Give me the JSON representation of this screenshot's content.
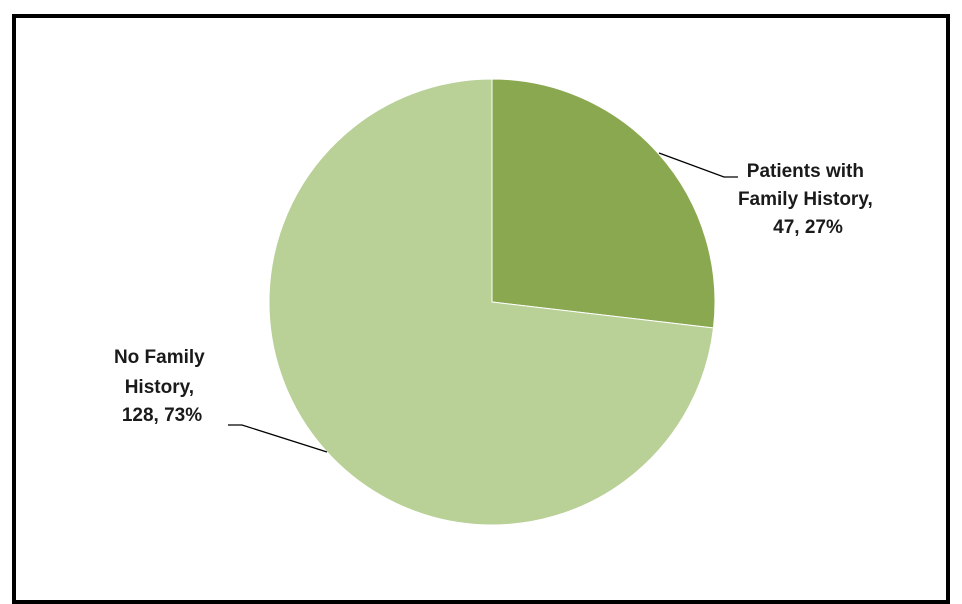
{
  "chart_data": {
    "type": "pie",
    "slices": [
      {
        "label_lines": [
          "Patients with",
          "Family History,",
          "47, 27%"
        ],
        "category": "Patients with Family History",
        "value": 47,
        "percent": 27,
        "color": "#8aa84f"
      },
      {
        "label_lines": [
          "No Family",
          "History,",
          "128, 73%"
        ],
        "category": "No Family History",
        "value": 128,
        "percent": 73,
        "color": "#b9d097"
      }
    ],
    "legend": "none",
    "data_labels": "outside with leader lines"
  }
}
